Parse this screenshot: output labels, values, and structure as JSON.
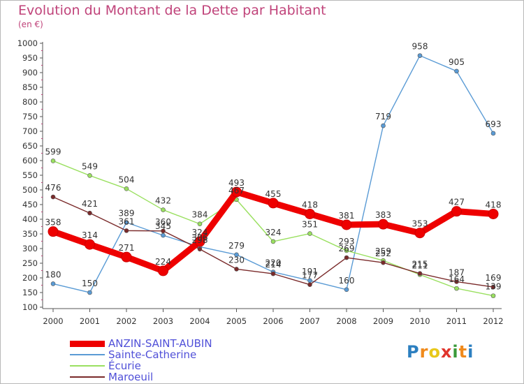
{
  "title": "Evolution du Montant de la Dette par Habitant",
  "subtitle": "(en €)",
  "logo": {
    "text": "Proxiti",
    "letters": [
      {
        "ch": "P",
        "color": "#2c7fc0"
      },
      {
        "ch": "r",
        "color": "#f08a1c"
      },
      {
        "ch": "o",
        "color": "#e8c81a"
      },
      {
        "ch": "x",
        "color": "#e0342c"
      },
      {
        "ch": "i",
        "color": "#3a9a3a"
      },
      {
        "ch": "t",
        "color": "#f08a1c"
      },
      {
        "ch": "i",
        "color": "#2c7fc0"
      }
    ]
  },
  "chart_data": {
    "type": "line",
    "title": "Evolution du Montant de la Dette par Habitant",
    "subtitle": "(en €)",
    "categories": [
      "2000",
      "2001",
      "2002",
      "2003",
      "2004",
      "2005",
      "2006",
      "2007",
      "2008",
      "2009",
      "2010",
      "2011",
      "2012"
    ],
    "ylim": [
      100,
      1000
    ],
    "yticks": [
      100,
      150,
      200,
      250,
      300,
      350,
      400,
      450,
      500,
      550,
      600,
      650,
      700,
      750,
      800,
      850,
      900,
      950,
      1000
    ],
    "grid": false,
    "legend": "bottom-left",
    "series": [
      {
        "name": "ANZIN-SAINT-AUBIN",
        "color": "#ee0000",
        "width": 9,
        "values": [
          358,
          314,
          271,
          224,
          324,
          493,
          455,
          418,
          381,
          383,
          353,
          427,
          418
        ],
        "labels": [
          "358",
          "314",
          "271",
          "224",
          "324",
          "493",
          "455",
          "418",
          "381",
          "383",
          "353",
          "427",
          "418"
        ]
      },
      {
        "name": "Sainte-Catherine",
        "color": "#5a9bd5",
        "width": 1.4,
        "values": [
          180,
          150,
          389,
          345,
          306,
          279,
          220,
          191,
          160,
          719,
          958,
          905,
          693
        ],
        "labels": [
          "180",
          "150",
          "389",
          "345",
          "306",
          "279",
          "220",
          "191",
          "160",
          "719",
          "958",
          "905",
          "693"
        ]
      },
      {
        "name": "Écurie",
        "color": "#9ae060",
        "width": 1.4,
        "values": [
          599,
          549,
          504,
          432,
          384,
          467,
          324,
          351,
          293,
          259,
          211,
          164,
          139
        ],
        "labels": [
          "599",
          "549",
          "504",
          "432",
          "384",
          "467",
          "324",
          "351",
          "293",
          "259",
          "211",
          "164",
          "139"
        ]
      },
      {
        "name": "Maroeuil",
        "color": "#7a2a2a",
        "width": 1.4,
        "values": [
          476,
          421,
          361,
          360,
          298,
          230,
          214,
          177,
          269,
          252,
          215,
          187,
          169
        ],
        "labels": [
          "476",
          "421",
          "361",
          "360",
          "298",
          "230",
          "214",
          "177",
          "269",
          "252",
          "215",
          "187",
          "169"
        ]
      }
    ]
  }
}
